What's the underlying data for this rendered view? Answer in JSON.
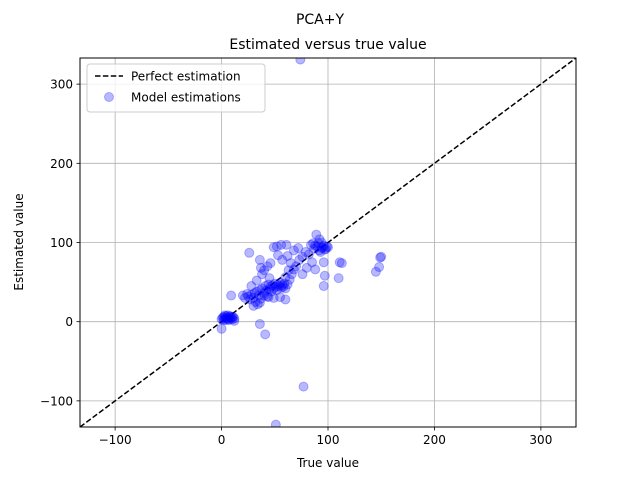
{
  "suptitle": "PCA+Y",
  "chart_data": {
    "type": "scatter",
    "title": "Estimated versus true value",
    "xlabel": "True value",
    "ylabel": "Estimated value",
    "xlim": [
      -133,
      333
    ],
    "ylim": [
      -133,
      333
    ],
    "xticks": [
      -100,
      0,
      100,
      200,
      300
    ],
    "yticks": [
      -100,
      0,
      100,
      200,
      300
    ],
    "xtick_labels": [
      "−100",
      "0",
      "100",
      "200",
      "300"
    ],
    "ytick_labels": [
      "−100",
      "0",
      "100",
      "200",
      "300"
    ],
    "grid": true,
    "legend": {
      "placement": "upper-left",
      "entries": [
        "Perfect estimation",
        "Model estimations"
      ]
    },
    "series": [
      {
        "name": "Perfect estimation",
        "kind": "line",
        "style": "dashed",
        "color": "#000000",
        "x": [
          -133,
          333
        ],
        "y": [
          -133,
          333
        ]
      },
      {
        "name": "Model estimations",
        "kind": "scatter",
        "color": "#0000ff",
        "alpha": 0.28,
        "points": [
          [
            74,
            331
          ],
          [
            51,
            -130
          ],
          [
            77,
            -82
          ],
          [
            41,
            -16
          ],
          [
            36,
            -3
          ],
          [
            0,
            -9
          ],
          [
            0,
            3
          ],
          [
            1,
            5
          ],
          [
            2,
            6
          ],
          [
            3,
            4
          ],
          [
            4,
            7
          ],
          [
            5,
            5
          ],
          [
            6,
            3
          ],
          [
            7,
            6
          ],
          [
            8,
            4
          ],
          [
            9,
            5
          ],
          [
            10,
            3
          ],
          [
            11,
            6
          ],
          [
            12,
            4
          ],
          [
            2,
            2
          ],
          [
            4,
            2
          ],
          [
            6,
            8
          ],
          [
            8,
            7
          ],
          [
            10,
            6
          ],
          [
            3,
            8
          ],
          [
            7,
            2
          ],
          [
            12,
            1
          ],
          [
            9,
            33
          ],
          [
            20,
            33
          ],
          [
            22,
            30
          ],
          [
            24,
            35
          ],
          [
            25,
            32
          ],
          [
            27,
            28
          ],
          [
            28,
            34
          ],
          [
            30,
            30
          ],
          [
            31,
            36
          ],
          [
            32,
            25
          ],
          [
            33,
            38
          ],
          [
            35,
            33
          ],
          [
            36,
            40
          ],
          [
            37,
            29
          ],
          [
            38,
            42
          ],
          [
            40,
            36
          ],
          [
            41,
            45
          ],
          [
            42,
            39
          ],
          [
            43,
            32
          ],
          [
            44,
            47
          ],
          [
            45,
            41
          ],
          [
            46,
            44
          ],
          [
            47,
            38
          ],
          [
            48,
            46
          ],
          [
            49,
            42
          ],
          [
            50,
            48
          ],
          [
            51,
            44
          ],
          [
            52,
            40
          ],
          [
            53,
            47
          ],
          [
            54,
            45
          ],
          [
            55,
            49
          ],
          [
            56,
            43
          ],
          [
            57,
            46
          ],
          [
            58,
            44
          ],
          [
            59,
            48
          ],
          [
            60,
            42
          ],
          [
            62,
            47
          ],
          [
            30,
            20
          ],
          [
            34,
            22
          ],
          [
            28,
            45
          ],
          [
            33,
            52
          ],
          [
            38,
            60
          ],
          [
            45,
            55
          ],
          [
            49,
            30
          ],
          [
            55,
            31
          ],
          [
            60,
            28
          ],
          [
            44,
            31
          ],
          [
            40,
            33
          ],
          [
            36,
            24
          ],
          [
            26,
            87
          ],
          [
            36,
            78
          ],
          [
            40,
            65
          ],
          [
            43,
            70
          ],
          [
            37,
            68
          ],
          [
            46,
            74
          ],
          [
            49,
            94
          ],
          [
            52,
            95
          ],
          [
            56,
            97
          ],
          [
            61,
            97
          ],
          [
            53,
            84
          ],
          [
            57,
            78
          ],
          [
            62,
            83
          ],
          [
            65,
            74
          ],
          [
            68,
            90
          ],
          [
            72,
            93
          ],
          [
            66,
            60
          ],
          [
            64,
            53
          ],
          [
            68,
            66
          ],
          [
            60,
            56
          ],
          [
            63,
            65
          ],
          [
            70,
            70
          ],
          [
            73,
            78
          ],
          [
            76,
            82
          ],
          [
            79,
            88
          ],
          [
            82,
            85
          ],
          [
            84,
            97
          ],
          [
            87,
            92
          ],
          [
            90,
            95
          ],
          [
            92,
            90
          ],
          [
            94,
            93
          ],
          [
            96,
            96
          ],
          [
            98,
            92
          ],
          [
            88,
            96
          ],
          [
            91,
            99
          ],
          [
            93,
            88
          ],
          [
            95,
            94
          ],
          [
            97,
            91
          ],
          [
            99,
            95
          ],
          [
            86,
            99
          ],
          [
            89,
            110
          ],
          [
            92,
            104
          ],
          [
            94,
            100
          ],
          [
            100,
            94
          ],
          [
            85,
            75
          ],
          [
            80,
            68
          ],
          [
            76,
            60
          ],
          [
            88,
            66
          ],
          [
            96,
            75
          ],
          [
            97,
            58
          ],
          [
            96,
            45
          ],
          [
            111,
            75
          ],
          [
            113,
            74
          ],
          [
            110,
            55
          ],
          [
            145,
            63
          ],
          [
            148,
            69
          ],
          [
            149,
            81
          ],
          [
            150,
            82
          ]
        ]
      }
    ]
  }
}
